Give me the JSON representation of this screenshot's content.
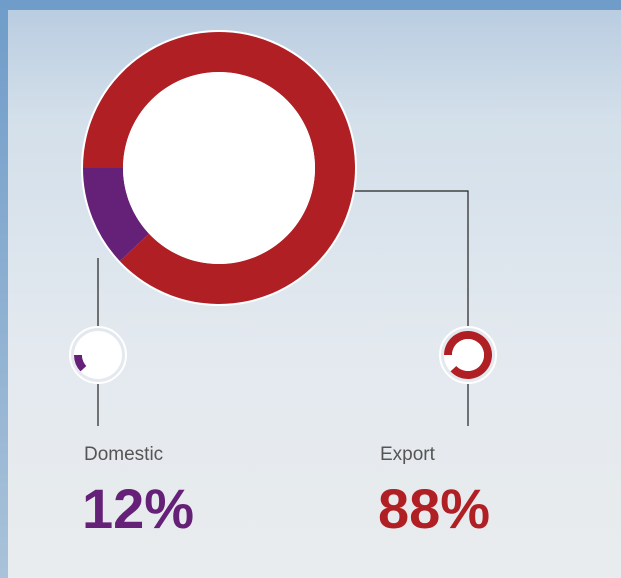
{
  "chart_data": {
    "type": "donut",
    "categories": [
      "Domestic",
      "Export"
    ],
    "values": [
      12,
      88
    ],
    "value_labels": [
      "12%",
      "88%"
    ],
    "colors": [
      "#652077",
      "#b01f24"
    ]
  }
}
